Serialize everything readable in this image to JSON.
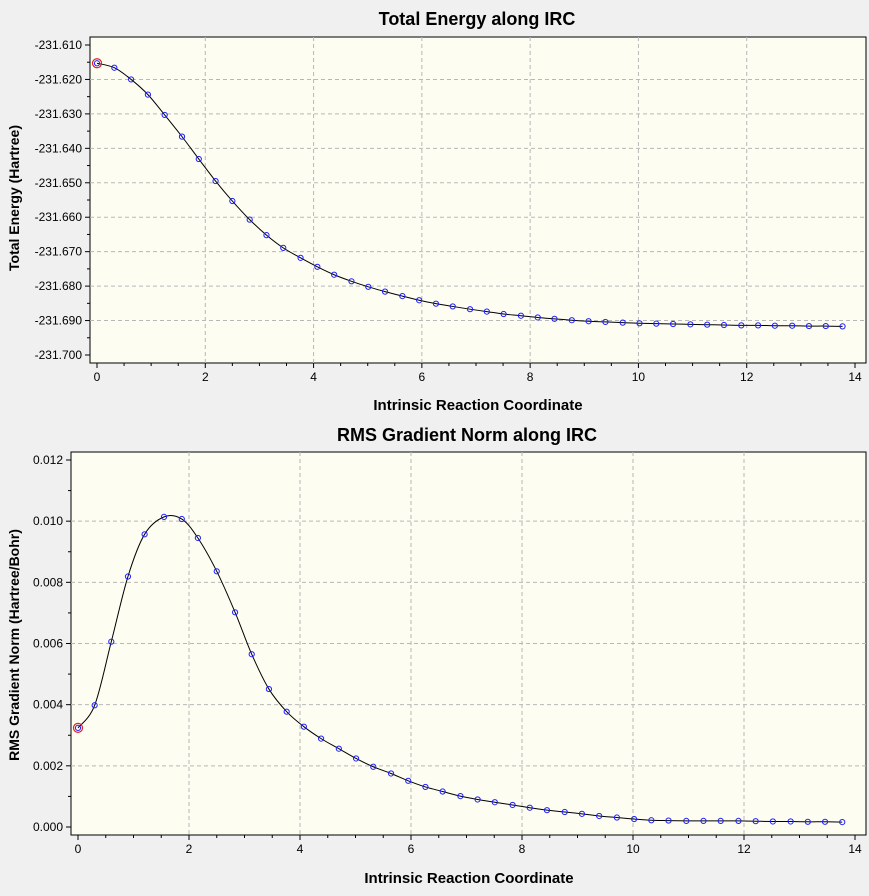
{
  "chart_data": [
    {
      "type": "line",
      "title": "Total Energy along IRC",
      "xlabel": "Intrinsic Reaction Coordinate",
      "ylabel": "Total Energy (Hartree)",
      "xlim": [
        0,
        14
      ],
      "ylim": [
        -231.7,
        -231.61
      ],
      "xticks": [
        0,
        2,
        4,
        6,
        8,
        10,
        12,
        14
      ],
      "yticks": [
        -231.61,
        -231.62,
        -231.63,
        -231.64,
        -231.65,
        -231.66,
        -231.67,
        -231.68,
        -231.69,
        -231.7
      ],
      "xtick_labels": [
        "0",
        "2",
        "4",
        "6",
        "8",
        "10",
        "12",
        "14"
      ],
      "ytick_labels": [
        "-231.610",
        "-231.620",
        "-231.630",
        "-231.640",
        "-231.650",
        "-231.660",
        "-231.670",
        "-231.680",
        "-231.690",
        "-231.700"
      ],
      "grid": true,
      "series": [
        {
          "line_color": "#000000",
          "marker_color": "#1f1fff",
          "x": [
            0.0,
            0.32,
            0.63,
            0.94,
            1.25,
            1.57,
            1.88,
            2.19,
            2.5,
            2.82,
            3.13,
            3.44,
            3.76,
            4.07,
            4.38,
            4.7,
            5.01,
            5.32,
            5.64,
            5.95,
            6.26,
            6.57,
            6.89,
            7.2,
            7.51,
            7.83,
            8.14,
            8.45,
            8.77,
            9.08,
            9.39,
            9.71,
            10.02,
            10.33,
            10.64,
            10.96,
            11.27,
            11.58,
            11.9,
            12.21,
            12.52,
            12.84,
            13.15,
            13.46,
            13.77
          ],
          "y": [
            -231.6153,
            -231.6166,
            -231.62,
            -231.6244,
            -231.6303,
            -231.6366,
            -231.6431,
            -231.6495,
            -231.6553,
            -231.6607,
            -231.6652,
            -231.6689,
            -231.6718,
            -231.6744,
            -231.6767,
            -231.6786,
            -231.6802,
            -231.6816,
            -231.6829,
            -231.6841,
            -231.6851,
            -231.6859,
            -231.6867,
            -231.6874,
            -231.6881,
            -231.6886,
            -231.6891,
            -231.6895,
            -231.6899,
            -231.6902,
            -231.6904,
            -231.6906,
            -231.6908,
            -231.6909,
            -231.691,
            -231.6911,
            -231.6912,
            -231.6913,
            -231.6914,
            -231.6914,
            -231.6915,
            -231.6915,
            -231.6916,
            -231.6916,
            -231.6917
          ],
          "highlight_index": 0,
          "highlight_color": "#e0202a"
        }
      ]
    },
    {
      "type": "line",
      "title": "RMS Gradient Norm along IRC",
      "xlabel": "Intrinsic Reaction Coordinate",
      "ylabel": "RMS Gradient Norm (Hartree/Bohr)",
      "xlim": [
        0,
        14
      ],
      "ylim": [
        0.0,
        0.012
      ],
      "xticks": [
        0,
        2,
        4,
        6,
        8,
        10,
        12,
        14
      ],
      "yticks": [
        0.0,
        0.002,
        0.004,
        0.006,
        0.008,
        0.01,
        0.012
      ],
      "xtick_labels": [
        "0",
        "2",
        "4",
        "6",
        "8",
        "10",
        "12",
        "14"
      ],
      "ytick_labels": [
        "0.000",
        "0.002",
        "0.004",
        "0.006",
        "0.008",
        "0.010",
        "0.012"
      ],
      "grid": true,
      "series": [
        {
          "line_color": "#000000",
          "marker_color": "#1f1fff",
          "x": [
            0.0,
            0.3,
            0.6,
            0.9,
            1.2,
            1.55,
            1.87,
            2.16,
            2.5,
            2.83,
            3.13,
            3.44,
            3.76,
            4.07,
            4.38,
            4.7,
            5.01,
            5.32,
            5.64,
            5.95,
            6.26,
            6.57,
            6.89,
            7.2,
            7.51,
            7.83,
            8.14,
            8.45,
            8.77,
            9.08,
            9.39,
            9.71,
            10.02,
            10.33,
            10.64,
            10.96,
            11.27,
            11.58,
            11.9,
            12.21,
            12.52,
            12.84,
            13.15,
            13.46,
            13.77
          ],
          "y": [
            0.00324,
            0.00398,
            0.00606,
            0.00819,
            0.00957,
            0.01014,
            0.01007,
            0.00945,
            0.00836,
            0.00702,
            0.00565,
            0.00451,
            0.00377,
            0.00328,
            0.00289,
            0.00256,
            0.00224,
            0.00197,
            0.00175,
            0.00151,
            0.00131,
            0.00116,
            0.00101,
            0.0009,
            0.00081,
            0.00072,
            0.00063,
            0.00055,
            0.00049,
            0.00043,
            0.00036,
            0.00031,
            0.00026,
            0.00022,
            0.00021,
            0.0002,
            0.0002,
            0.0002,
            0.0002,
            0.00019,
            0.00018,
            0.00018,
            0.00017,
            0.00017,
            0.00016
          ],
          "highlight_index": 0,
          "highlight_color": "#e0202a"
        }
      ]
    }
  ],
  "colors": {
    "background": "#f0f0f0",
    "plot_area": "#fdfdf2",
    "grid": "#b8b8b8",
    "axis": "#000000"
  }
}
